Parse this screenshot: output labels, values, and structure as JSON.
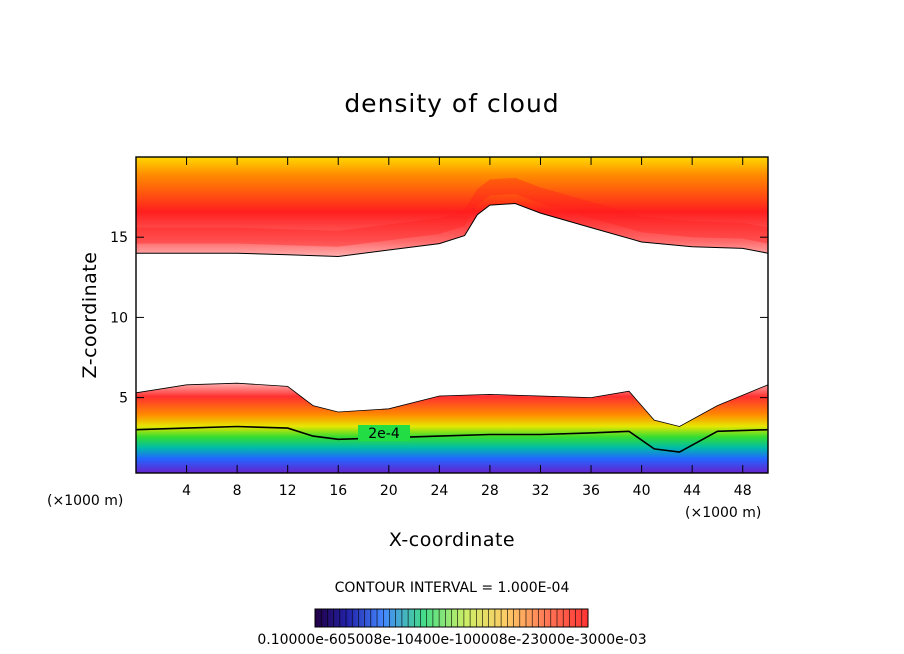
{
  "chart_data": {
    "type": "heatmap",
    "title": "density of cloud",
    "xlabel": "X-coordinate",
    "ylabel": "Z-coordinate",
    "x_unit_left": "(×1000 m)",
    "x_unit_right": "(×1000 m)",
    "xlim": [
      0,
      50
    ],
    "ylim": [
      0.3,
      20
    ],
    "x_ticks": [
      4,
      8,
      12,
      16,
      20,
      24,
      28,
      32,
      36,
      40,
      44,
      48
    ],
    "y_ticks": [
      5,
      10,
      15
    ],
    "contour_interval_text": "CONTOUR INTERVAL = 1.000E-04",
    "contour_label": "2e-4",
    "colorbar_labels_text": "0.10000e-605008e-10400e-100008e-23000e-3000e-03",
    "upper_cloud_base_km": [
      {
        "x": 0,
        "z": 14.0
      },
      {
        "x": 4,
        "z": 14.0
      },
      {
        "x": 8,
        "z": 14.0
      },
      {
        "x": 12,
        "z": 13.9
      },
      {
        "x": 16,
        "z": 13.8
      },
      {
        "x": 20,
        "z": 14.2
      },
      {
        "x": 24,
        "z": 14.6
      },
      {
        "x": 26,
        "z": 15.1
      },
      {
        "x": 27,
        "z": 16.4
      },
      {
        "x": 28,
        "z": 17.0
      },
      {
        "x": 30,
        "z": 17.1
      },
      {
        "x": 32,
        "z": 16.5
      },
      {
        "x": 36,
        "z": 15.6
      },
      {
        "x": 40,
        "z": 14.7
      },
      {
        "x": 44,
        "z": 14.4
      },
      {
        "x": 48,
        "z": 14.3
      },
      {
        "x": 50,
        "z": 14.0
      }
    ],
    "lower_cloud_top_km": [
      {
        "x": 0,
        "z": 5.3
      },
      {
        "x": 4,
        "z": 5.8
      },
      {
        "x": 8,
        "z": 5.9
      },
      {
        "x": 12,
        "z": 5.7
      },
      {
        "x": 14,
        "z": 4.5
      },
      {
        "x": 16,
        "z": 4.1
      },
      {
        "x": 20,
        "z": 4.3
      },
      {
        "x": 24,
        "z": 5.1
      },
      {
        "x": 28,
        "z": 5.2
      },
      {
        "x": 32,
        "z": 5.1
      },
      {
        "x": 36,
        "z": 5.0
      },
      {
        "x": 39,
        "z": 5.4
      },
      {
        "x": 41,
        "z": 3.6
      },
      {
        "x": 43,
        "z": 3.2
      },
      {
        "x": 46,
        "z": 4.5
      },
      {
        "x": 50,
        "z": 5.8
      }
    ],
    "contour_2e4_km": [
      {
        "x": 0,
        "z": 3.0
      },
      {
        "x": 4,
        "z": 3.1
      },
      {
        "x": 8,
        "z": 3.2
      },
      {
        "x": 12,
        "z": 3.1
      },
      {
        "x": 14,
        "z": 2.6
      },
      {
        "x": 16,
        "z": 2.4
      },
      {
        "x": 20,
        "z": 2.5
      },
      {
        "x": 24,
        "z": 2.6
      },
      {
        "x": 28,
        "z": 2.7
      },
      {
        "x": 32,
        "z": 2.7
      },
      {
        "x": 36,
        "z": 2.8
      },
      {
        "x": 39,
        "z": 2.9
      },
      {
        "x": 41,
        "z": 1.8
      },
      {
        "x": 43,
        "z": 1.6
      },
      {
        "x": 46,
        "z": 2.9
      },
      {
        "x": 50,
        "z": 3.0
      }
    ],
    "color_scale": [
      "#ffd800",
      "#ff8c00",
      "#ff1e1e",
      "#ff6a6a",
      "#ffffff"
    ],
    "lower_scale": [
      "#ff2a2a",
      "#ff8a00",
      "#e6e600",
      "#33dd33",
      "#00bbaa",
      "#2266ff",
      "#6622cc"
    ]
  }
}
